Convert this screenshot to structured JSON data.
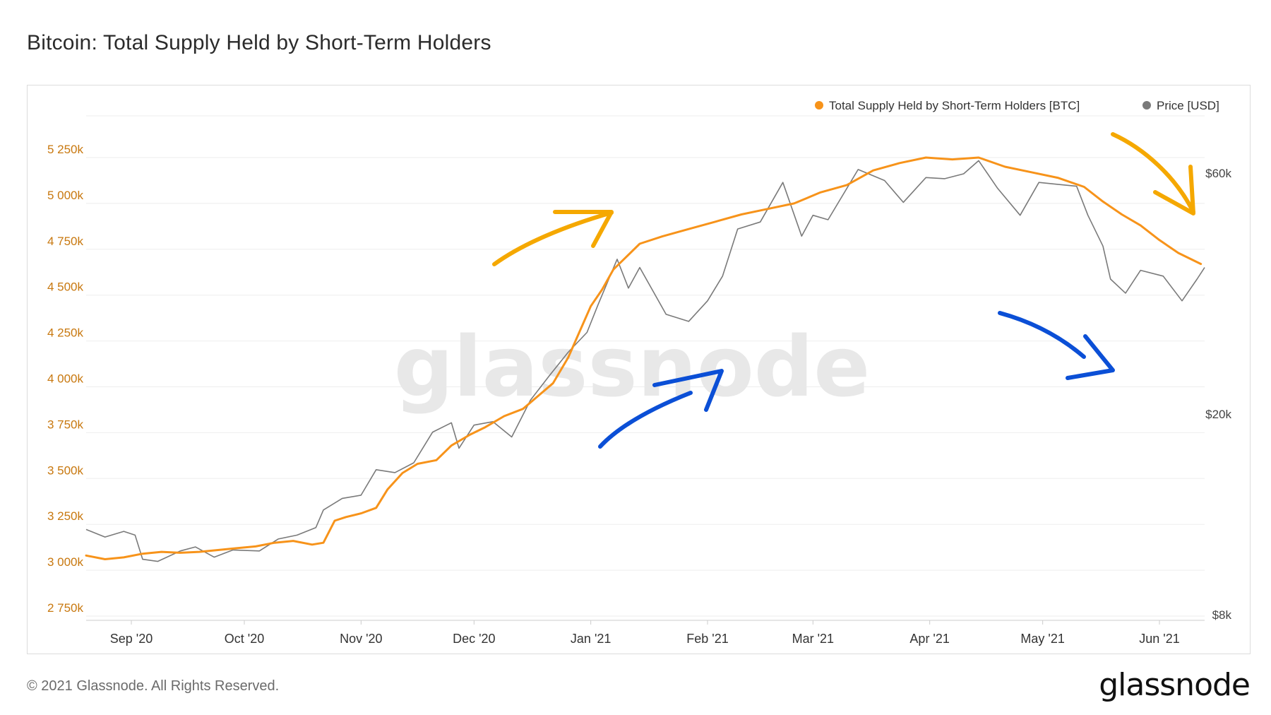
{
  "title": "Bitcoin: Total Supply Held by Short-Term Holders",
  "footer": {
    "copyright": "© 2021 Glassnode. All Rights Reserved.",
    "logo": "glassnode"
  },
  "watermark": "glassnode",
  "colors": {
    "supply": "#f7931a",
    "price": "#7a7a7a",
    "left_axis_text": "#c8780f",
    "right_axis_text": "#444444",
    "annotation_orange": "#f5a800",
    "annotation_blue": "#0b4fd6"
  },
  "chart_data": {
    "type": "line",
    "legend_position": "top-right",
    "grid": true,
    "x_ticks": [
      "Sep '20",
      "Oct '20",
      "Nov '20",
      "Dec '20",
      "Jan '21",
      "Feb '21",
      "Mar '21",
      "Apr '21",
      "May '21",
      "Jun '21"
    ],
    "x_range": [
      "2020-08-20",
      "2021-06-13"
    ],
    "y_left": {
      "ticks": [
        "2 750k",
        "3 000k",
        "3 250k",
        "3 500k",
        "3 750k",
        "4 000k",
        "4 250k",
        "4 500k",
        "4 750k",
        "5 000k",
        "5 250k"
      ],
      "range": [
        2750,
        5500
      ],
      "unit": "BTC (thousands)"
    },
    "y_right": {
      "ticks": [
        "$8k",
        "$20k",
        "$60k"
      ],
      "scale": "log",
      "range": [
        8000,
        80000
      ]
    },
    "series": [
      {
        "name": "Total Supply Held by Short-Term Holders [BTC]",
        "axis": "left",
        "points": [
          [
            "2020-08-20",
            3080
          ],
          [
            "2020-08-25",
            3060
          ],
          [
            "2020-08-30",
            3070
          ],
          [
            "2020-09-04",
            3090
          ],
          [
            "2020-09-09",
            3100
          ],
          [
            "2020-09-14",
            3095
          ],
          [
            "2020-09-19",
            3100
          ],
          [
            "2020-09-24",
            3110
          ],
          [
            "2020-09-29",
            3120
          ],
          [
            "2020-10-04",
            3130
          ],
          [
            "2020-10-09",
            3150
          ],
          [
            "2020-10-14",
            3160
          ],
          [
            "2020-10-19",
            3140
          ],
          [
            "2020-10-22",
            3150
          ],
          [
            "2020-10-25",
            3270
          ],
          [
            "2020-10-28",
            3290
          ],
          [
            "2020-11-01",
            3310
          ],
          [
            "2020-11-05",
            3340
          ],
          [
            "2020-11-08",
            3440
          ],
          [
            "2020-11-12",
            3530
          ],
          [
            "2020-11-16",
            3580
          ],
          [
            "2020-11-21",
            3600
          ],
          [
            "2020-11-25",
            3680
          ],
          [
            "2020-11-30",
            3740
          ],
          [
            "2020-12-04",
            3780
          ],
          [
            "2020-12-09",
            3840
          ],
          [
            "2020-12-14",
            3880
          ],
          [
            "2020-12-18",
            3950
          ],
          [
            "2020-12-22",
            4020
          ],
          [
            "2020-12-26",
            4160
          ],
          [
            "2020-12-29",
            4300
          ],
          [
            "2021-01-01",
            4440
          ],
          [
            "2021-01-04",
            4530
          ],
          [
            "2021-01-07",
            4640
          ],
          [
            "2021-01-10",
            4700
          ],
          [
            "2021-01-14",
            4780
          ],
          [
            "2021-01-20",
            4820
          ],
          [
            "2021-01-27",
            4860
          ],
          [
            "2021-02-03",
            4900
          ],
          [
            "2021-02-10",
            4940
          ],
          [
            "2021-02-17",
            4970
          ],
          [
            "2021-02-24",
            5000
          ],
          [
            "2021-03-03",
            5060
          ],
          [
            "2021-03-10",
            5100
          ],
          [
            "2021-03-17",
            5180
          ],
          [
            "2021-03-24",
            5220
          ],
          [
            "2021-03-31",
            5250
          ],
          [
            "2021-04-07",
            5240
          ],
          [
            "2021-04-14",
            5250
          ],
          [
            "2021-04-21",
            5200
          ],
          [
            "2021-04-28",
            5170
          ],
          [
            "2021-05-05",
            5140
          ],
          [
            "2021-05-12",
            5090
          ],
          [
            "2021-05-17",
            5010
          ],
          [
            "2021-05-22",
            4940
          ],
          [
            "2021-05-27",
            4880
          ],
          [
            "2021-06-01",
            4800
          ],
          [
            "2021-06-06",
            4730
          ],
          [
            "2021-06-12",
            4670
          ]
        ]
      },
      {
        "name": "Price [USD]",
        "axis": "right",
        "points": [
          [
            "2020-08-20",
            11800
          ],
          [
            "2020-08-25",
            11400
          ],
          [
            "2020-08-30",
            11700
          ],
          [
            "2020-09-02",
            11500
          ],
          [
            "2020-09-04",
            10300
          ],
          [
            "2020-09-08",
            10200
          ],
          [
            "2020-09-14",
            10700
          ],
          [
            "2020-09-18",
            10900
          ],
          [
            "2020-09-23",
            10400
          ],
          [
            "2020-09-28",
            10750
          ],
          [
            "2020-10-05",
            10700
          ],
          [
            "2020-10-10",
            11300
          ],
          [
            "2020-10-15",
            11500
          ],
          [
            "2020-10-20",
            11900
          ],
          [
            "2020-10-22",
            12900
          ],
          [
            "2020-10-27",
            13600
          ],
          [
            "2020-11-01",
            13800
          ],
          [
            "2020-11-05",
            15500
          ],
          [
            "2020-11-10",
            15300
          ],
          [
            "2020-11-15",
            16000
          ],
          [
            "2020-11-20",
            18400
          ],
          [
            "2020-11-25",
            19200
          ],
          [
            "2020-11-27",
            17100
          ],
          [
            "2020-12-01",
            19000
          ],
          [
            "2020-12-06",
            19300
          ],
          [
            "2020-12-11",
            18000
          ],
          [
            "2020-12-16",
            21300
          ],
          [
            "2020-12-21",
            23800
          ],
          [
            "2020-12-26",
            26500
          ],
          [
            "2020-12-31",
            29000
          ],
          [
            "2021-01-03",
            33000
          ],
          [
            "2021-01-08",
            40500
          ],
          [
            "2021-01-11",
            35500
          ],
          [
            "2021-01-14",
            39000
          ],
          [
            "2021-01-21",
            31500
          ],
          [
            "2021-01-27",
            30500
          ],
          [
            "2021-02-01",
            33500
          ],
          [
            "2021-02-05",
            37500
          ],
          [
            "2021-02-09",
            46500
          ],
          [
            "2021-02-15",
            48000
          ],
          [
            "2021-02-21",
            57500
          ],
          [
            "2021-02-26",
            45000
          ],
          [
            "2021-03-01",
            49500
          ],
          [
            "2021-03-05",
            48500
          ],
          [
            "2021-03-13",
            61000
          ],
          [
            "2021-03-20",
            58000
          ],
          [
            "2021-03-25",
            52500
          ],
          [
            "2021-03-31",
            58800
          ],
          [
            "2021-04-05",
            58500
          ],
          [
            "2021-04-10",
            59800
          ],
          [
            "2021-04-14",
            63500
          ],
          [
            "2021-04-19",
            56000
          ],
          [
            "2021-04-25",
            49500
          ],
          [
            "2021-04-30",
            57500
          ],
          [
            "2021-05-05",
            57000
          ],
          [
            "2021-05-10",
            56500
          ],
          [
            "2021-05-13",
            49500
          ],
          [
            "2021-05-17",
            43000
          ],
          [
            "2021-05-19",
            37000
          ],
          [
            "2021-05-23",
            34700
          ],
          [
            "2021-05-27",
            38500
          ],
          [
            "2021-06-02",
            37500
          ],
          [
            "2021-06-07",
            33500
          ],
          [
            "2021-06-11",
            37000
          ],
          [
            "2021-06-13",
            39000
          ]
        ]
      }
    ],
    "annotations": [
      {
        "color": "orange",
        "shape": "arrow",
        "direction": "up-right"
      },
      {
        "color": "orange",
        "shape": "arrow",
        "direction": "down-right"
      },
      {
        "color": "blue",
        "shape": "arrow",
        "direction": "up-right"
      },
      {
        "color": "blue",
        "shape": "arrow",
        "direction": "down-right"
      }
    ]
  }
}
